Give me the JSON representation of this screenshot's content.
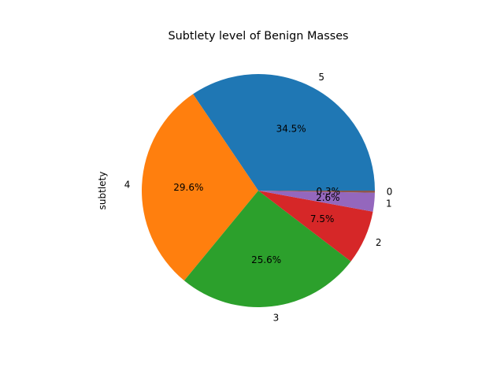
{
  "chart_data": {
    "type": "pie",
    "title": "Subtlety level of Benign Masses",
    "ylabel": "subtlety",
    "xlabel": "",
    "slices": [
      {
        "label": "5",
        "value": 34.5,
        "pct_label": "34.5%",
        "color": "#1f77b4"
      },
      {
        "label": "4",
        "value": 29.6,
        "pct_label": "29.6%",
        "color": "#ff7f0e"
      },
      {
        "label": "3",
        "value": 25.6,
        "pct_label": "25.6%",
        "color": "#2ca02c"
      },
      {
        "label": "2",
        "value": 7.5,
        "pct_label": "7.5%",
        "color": "#d62728"
      },
      {
        "label": "1",
        "value": 2.6,
        "pct_label": "2.6%",
        "color": "#9467bd"
      },
      {
        "label": "0",
        "value": 0.3,
        "pct_label": "0.3%",
        "color": "#8c564b"
      }
    ],
    "start_angle_deg": 0,
    "direction": "counterclockwise",
    "legend": "none",
    "grid": false
  }
}
